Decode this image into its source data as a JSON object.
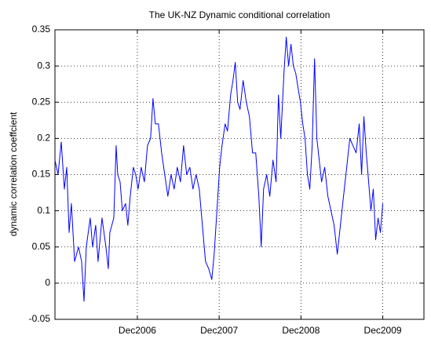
{
  "chart_data": {
    "type": "line",
    "title": "The UK-NZ Dynamic conditional correlation",
    "ylabel": "dynamic correlation coeffcient",
    "x": [
      2005.91,
      2005.948,
      2005.987,
      2006.025,
      2006.054,
      2006.083,
      2006.111,
      2006.15,
      2006.198,
      2006.236,
      2006.265,
      2006.293,
      2006.341,
      2006.37,
      2006.408,
      2006.437,
      2006.485,
      2006.533,
      2006.562,
      2006.581,
      2006.629,
      2006.658,
      2006.677,
      2006.706,
      2006.734,
      2006.773,
      2006.801,
      2006.83,
      2006.868,
      2006.897,
      2006.926,
      2006.964,
      2007.003,
      2007.041,
      2007.079,
      2007.108,
      2007.137,
      2007.175,
      2007.214,
      2007.252,
      2007.29,
      2007.329,
      2007.367,
      2007.405,
      2007.444,
      2007.482,
      2007.52,
      2007.559,
      2007.597,
      2007.635,
      2007.674,
      2007.712,
      2007.75,
      2007.789,
      2007.827,
      2007.856,
      2007.884,
      2007.923,
      2007.952,
      2007.99,
      2008.019,
      2008.057,
      2008.086,
      2008.114,
      2008.143,
      2008.172,
      2008.21,
      2008.249,
      2008.287,
      2008.325,
      2008.364,
      2008.402,
      2008.431,
      2008.46,
      2008.498,
      2008.536,
      2008.575,
      2008.613,
      2008.642,
      2008.67,
      2008.709,
      2008.737,
      2008.766,
      2008.795,
      2008.824,
      2008.853,
      2008.881,
      2008.91,
      2008.939,
      2008.967,
      2008.996,
      2009.025,
      2009.054,
      2009.083,
      2009.111,
      2009.14,
      2009.169,
      2009.207,
      2009.246,
      2009.284,
      2009.322,
      2009.361,
      2009.399,
      2009.437,
      2009.476,
      2009.514,
      2009.552,
      2009.591,
      2009.629,
      2009.658,
      2009.686,
      2009.715,
      2009.744,
      2009.772,
      2009.801,
      2009.83,
      2009.859,
      2009.888,
      2009.917
    ],
    "series": [
      {
        "color": "#0000ff",
        "values": [
          0.17,
          0.15,
          0.195,
          0.13,
          0.16,
          0.07,
          0.11,
          0.03,
          0.05,
          0.03,
          -0.025,
          0.05,
          0.09,
          0.05,
          0.08,
          0.03,
          0.09,
          0.05,
          0.02,
          0.07,
          0.09,
          0.19,
          0.15,
          0.14,
          0.1,
          0.11,
          0.08,
          0.12,
          0.16,
          0.15,
          0.13,
          0.16,
          0.14,
          0.19,
          0.2,
          0.255,
          0.22,
          0.22,
          0.18,
          0.15,
          0.12,
          0.15,
          0.13,
          0.16,
          0.14,
          0.19,
          0.15,
          0.16,
          0.13,
          0.15,
          0.13,
          0.08,
          0.03,
          0.02,
          0.005,
          0.04,
          0.09,
          0.16,
          0.19,
          0.22,
          0.21,
          0.26,
          0.28,
          0.305,
          0.25,
          0.24,
          0.28,
          0.25,
          0.23,
          0.18,
          0.18,
          0.12,
          0.05,
          0.13,
          0.15,
          0.12,
          0.17,
          0.14,
          0.26,
          0.2,
          0.29,
          0.34,
          0.3,
          0.33,
          0.3,
          0.29,
          0.27,
          0.25,
          0.22,
          0.2,
          0.15,
          0.13,
          0.19,
          0.31,
          0.2,
          0.17,
          0.14,
          0.16,
          0.12,
          0.1,
          0.08,
          0.04,
          0.08,
          0.12,
          0.16,
          0.2,
          0.19,
          0.18,
          0.22,
          0.15,
          0.23,
          0.18,
          0.14,
          0.1,
          0.13,
          0.06,
          0.09,
          0.07,
          0.11
        ]
      }
    ],
    "xlim": [
      2005.91,
      2010.42
    ],
    "xticks": [
      {
        "value": 2006.917,
        "label": "Dec2006"
      },
      {
        "value": 2007.917,
        "label": "Dec2007"
      },
      {
        "value": 2008.917,
        "label": "Dec2008"
      },
      {
        "value": 2009.917,
        "label": "Dec2009"
      }
    ],
    "ylim": [
      -0.05,
      0.35
    ],
    "yticks": [
      -0.05,
      0,
      0.05,
      0.1,
      0.15,
      0.2,
      0.25,
      0.3,
      0.35
    ],
    "grid": true
  }
}
